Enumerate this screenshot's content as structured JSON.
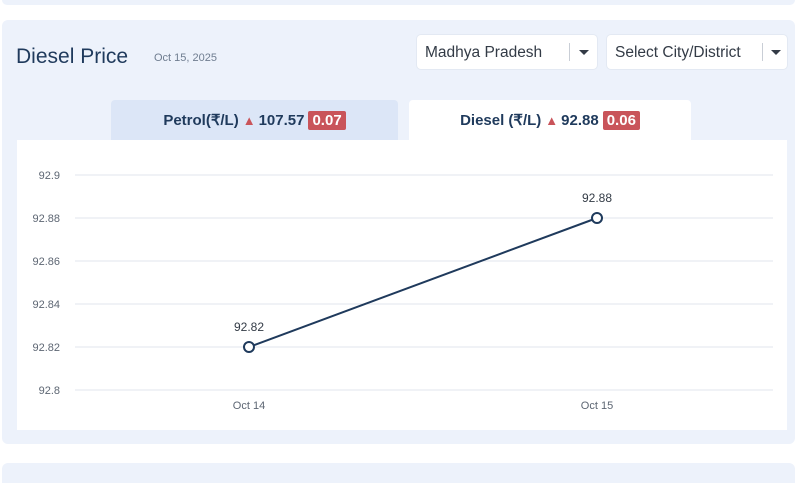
{
  "header": {
    "title": "Diesel Price",
    "date": "Oct 15, 2025"
  },
  "filters": {
    "state": "Madhya Pradesh",
    "city_placeholder": "Select City/District"
  },
  "tabs": [
    {
      "name": "Petrol(₹/L)",
      "price": "107.57",
      "change": "0.07",
      "trend": "up",
      "active": false
    },
    {
      "name": "Diesel (₹/L)",
      "price": "92.88",
      "change": "0.06",
      "trend": "up",
      "active": true
    }
  ],
  "colors": {
    "panel_bg": "#edf2fb",
    "inactive_tab_bg": "#dce6f7",
    "active_tab_bg": "#ffffff",
    "title_color": "#1f3a5c",
    "line_color": "#1f3a5c",
    "change_badge": "#c9545a"
  },
  "chart_data": {
    "type": "line",
    "categories": [
      "Oct 14",
      "Oct 15"
    ],
    "values": [
      92.82,
      92.88
    ],
    "data_labels": [
      "92.82",
      "92.88"
    ],
    "ylim": [
      92.8,
      92.9
    ],
    "yticks": [
      "92.8",
      "92.82",
      "92.84",
      "92.86",
      "92.88",
      "92.9"
    ],
    "grid": true,
    "legend": "none"
  }
}
